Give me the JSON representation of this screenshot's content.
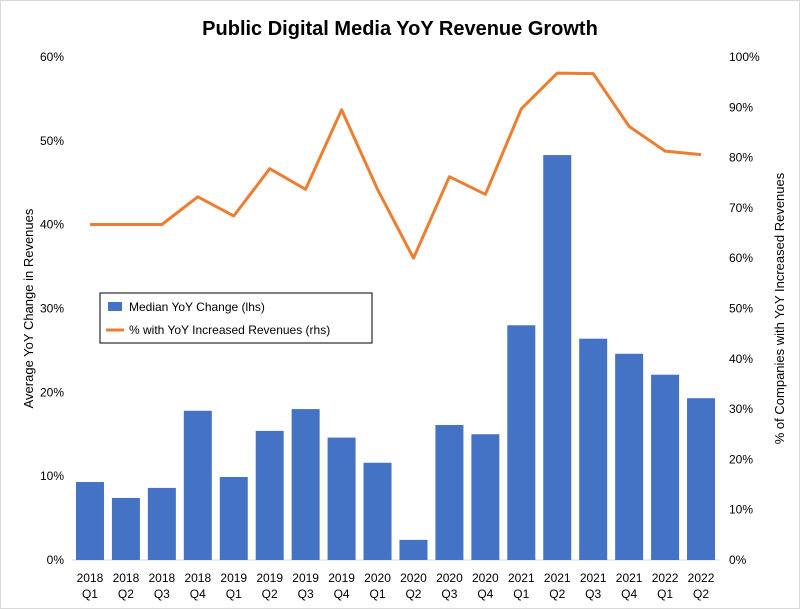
{
  "chart_data": {
    "type": "bar",
    "title": "Public Digital Media YoY Revenue Growth",
    "categories": [
      [
        "2018",
        "Q1"
      ],
      [
        "2018",
        "Q2"
      ],
      [
        "2018",
        "Q3"
      ],
      [
        "2018",
        "Q4"
      ],
      [
        "2019",
        "Q1"
      ],
      [
        "2019",
        "Q2"
      ],
      [
        "2019",
        "Q3"
      ],
      [
        "2019",
        "Q4"
      ],
      [
        "2020",
        "Q1"
      ],
      [
        "2020",
        "Q2"
      ],
      [
        "2020",
        "Q3"
      ],
      [
        "2020",
        "Q4"
      ],
      [
        "2021",
        "Q1"
      ],
      [
        "2021",
        "Q2"
      ],
      [
        "2021",
        "Q3"
      ],
      [
        "2021",
        "Q4"
      ],
      [
        "2022",
        "Q1"
      ],
      [
        "2022",
        "Q2"
      ]
    ],
    "ylabel": "Average YoY Change in Revenues",
    "y2label": "% of Companies with YoY Increased Revenues",
    "ylim": [
      0,
      60
    ],
    "y2lim": [
      0,
      100
    ],
    "yticks": [
      "0%",
      "10%",
      "20%",
      "30%",
      "40%",
      "50%",
      "60%"
    ],
    "y2ticks": [
      "0%",
      "10%",
      "20%",
      "30%",
      "40%",
      "50%",
      "60%",
      "70%",
      "80%",
      "90%",
      "100%"
    ],
    "series": [
      {
        "name": "Median YoY Change (lhs)",
        "type": "bar",
        "axis": "left",
        "color": "#4472C4",
        "values": [
          9.3,
          7.4,
          8.6,
          17.8,
          9.9,
          15.4,
          18.0,
          14.6,
          11.6,
          2.4,
          16.1,
          15.0,
          28.0,
          48.3,
          26.4,
          24.6,
          22.1,
          19.3
        ]
      },
      {
        "name": "% with YoY Increased Revenues (rhs)",
        "type": "line",
        "axis": "right",
        "color": "#ED7D31",
        "values": [
          66.7,
          66.7,
          66.7,
          72.2,
          68.4,
          77.8,
          73.7,
          89.5,
          73.7,
          60.0,
          76.2,
          72.7,
          89.7,
          96.8,
          96.7,
          86.2,
          81.3,
          80.6
        ]
      }
    ],
    "legend_position": "middle-left",
    "grid": false
  }
}
